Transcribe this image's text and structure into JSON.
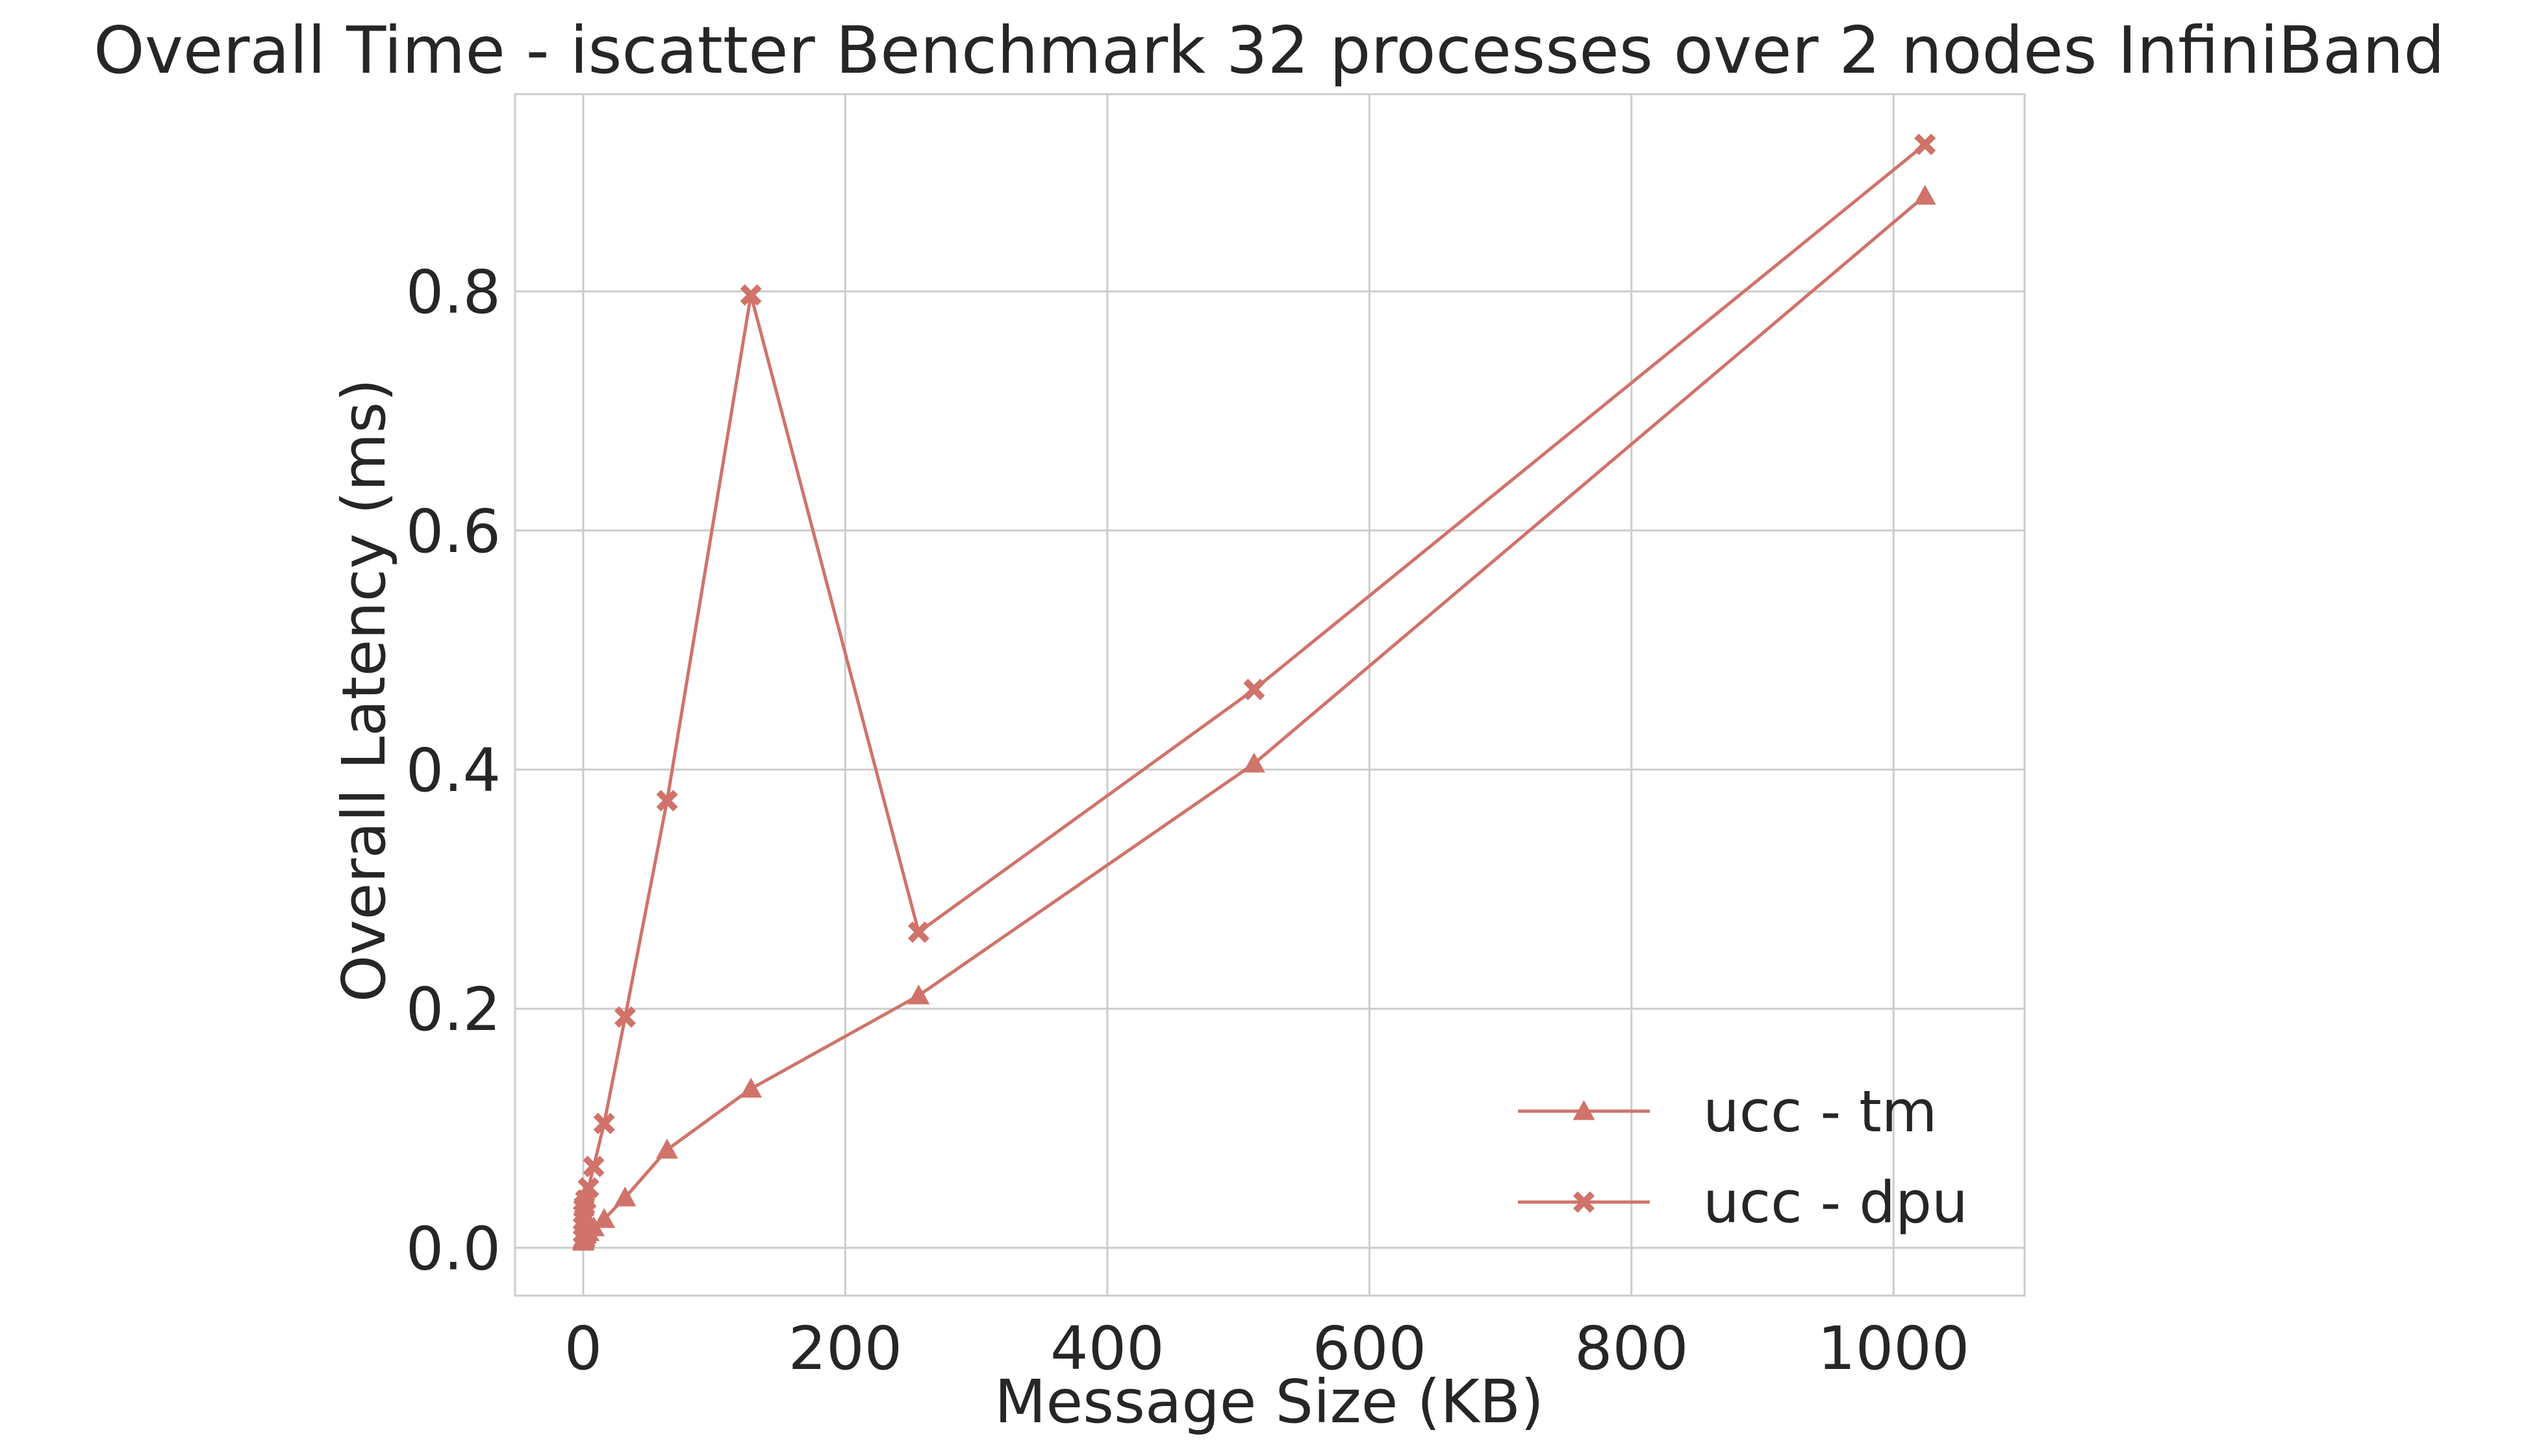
{
  "chart_data": {
    "type": "line",
    "title": "Overall Time - iscatter Benchmark 32 processes over 2 nodes InfiniBand",
    "xlabel": "Message Size (KB)",
    "ylabel": "Overall Latency (ms)",
    "xlim": [
      -52,
      1100
    ],
    "ylim": [
      -0.04,
      0.965
    ],
    "xticks": [
      0,
      200,
      400,
      600,
      800,
      1000
    ],
    "xtick_labels": [
      "0",
      "200",
      "400",
      "600",
      "800",
      "1000"
    ],
    "yticks": [
      0.0,
      0.2,
      0.4,
      0.6,
      0.8
    ],
    "ytick_labels": [
      "0.0",
      "0.2",
      "0.4",
      "0.6",
      "0.8"
    ],
    "grid": true,
    "legend_position": "bottom-right",
    "color": "#d0736a",
    "series": [
      {
        "name": "ucc - tm",
        "marker": "triangle",
        "x": [
          0.0625,
          0.125,
          0.25,
          0.5,
          1,
          2,
          4,
          8,
          16,
          32,
          64,
          128,
          256,
          512,
          1024
        ],
        "values": [
          0.005,
          0.006,
          0.007,
          0.008,
          0.009,
          0.011,
          0.013,
          0.017,
          0.024,
          0.042,
          0.082,
          0.133,
          0.211,
          0.405,
          0.88
        ]
      },
      {
        "name": "ucc - dpu",
        "marker": "x",
        "x": [
          0.0625,
          0.125,
          0.25,
          0.5,
          1,
          2,
          4,
          8,
          16,
          32,
          64,
          128,
          256,
          512,
          1024
        ],
        "values": [
          0.012,
          0.018,
          0.028,
          0.033,
          0.035,
          0.04,
          0.05,
          0.068,
          0.104,
          0.193,
          0.374,
          0.797,
          0.264,
          0.467,
          0.923
        ]
      }
    ]
  }
}
